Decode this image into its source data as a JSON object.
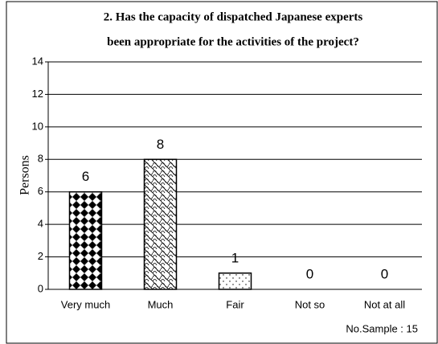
{
  "chart_data": {
    "type": "bar",
    "title": [
      "2.  Has the capacity of dispatched Japanese experts",
      "been appropriate for the activities of the project?"
    ],
    "y_label": "Persons",
    "categories": [
      "Very much",
      "Much",
      "Fair",
      "Not so",
      "Not at all"
    ],
    "values": [
      6,
      8,
      1,
      0,
      0
    ],
    "ylim": [
      0,
      14
    ],
    "yticks": [
      0,
      2,
      4,
      6,
      8,
      10,
      12,
      14
    ],
    "grid": true,
    "annotation": "No.Sample : 15"
  }
}
